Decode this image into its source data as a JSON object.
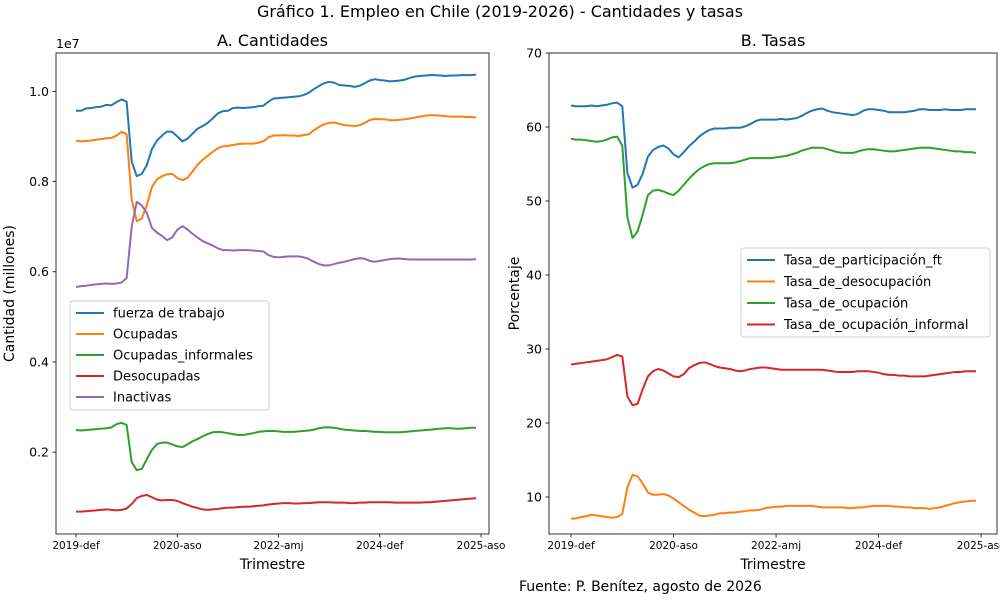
{
  "figure": {
    "title": "Gráfico 1. Empleo en Chile (2019-2026) - Cantidades y tasas",
    "source": "Fuente: P. Benítez, agosto de 2026"
  },
  "chart_data": [
    {
      "type": "line",
      "title": "A. Cantidades",
      "xlabel": "Trimestre",
      "ylabel": "Cantidad (millones)",
      "y_offset_label": "1e7",
      "x_ticks": [
        "2019-def",
        "2020-aso",
        "2022-amj",
        "2024-def",
        "2025-aso"
      ],
      "x_tick_index": [
        0,
        20,
        40,
        60,
        80
      ],
      "ylim": [
        0.0185,
        1.085
      ],
      "yticks": [
        "0.2",
        "0.4",
        "0.6",
        "0.8",
        "1.0"
      ],
      "ytick_values": [
        0.2,
        0.4,
        0.6,
        0.8,
        1.0
      ],
      "grid": false,
      "legend": "center-left",
      "series": [
        {
          "name": "fuerza de trabajo",
          "color": "#1f77b4",
          "values": [
            0.957,
            0.957,
            0.962,
            0.963,
            0.965,
            0.966,
            0.97,
            0.969,
            0.976,
            0.982,
            0.977,
            0.844,
            0.812,
            0.817,
            0.837,
            0.872,
            0.891,
            0.902,
            0.911,
            0.91,
            0.9,
            0.889,
            0.895,
            0.906,
            0.917,
            0.923,
            0.93,
            0.94,
            0.951,
            0.956,
            0.957,
            0.963,
            0.964,
            0.963,
            0.964,
            0.965,
            0.967,
            0.968,
            0.977,
            0.984,
            0.985,
            0.986,
            0.987,
            0.988,
            0.989,
            0.992,
            0.997,
            1.005,
            1.012,
            1.018,
            1.021,
            1.019,
            1.014,
            1.013,
            1.012,
            1.01,
            1.012,
            1.018,
            1.024,
            1.027,
            1.025,
            1.024,
            1.022,
            1.023,
            1.024,
            1.026,
            1.03,
            1.033,
            1.034,
            1.035,
            1.036,
            1.036,
            1.035,
            1.034,
            1.035,
            1.035,
            1.036,
            1.036,
            1.036,
            1.037
          ]
        },
        {
          "name": "Ocupadas",
          "color": "#ff7f0e",
          "values": [
            0.891,
            0.889,
            0.89,
            0.891,
            0.893,
            0.894,
            0.896,
            0.897,
            0.902,
            0.91,
            0.905,
            0.76,
            0.712,
            0.718,
            0.748,
            0.788,
            0.805,
            0.812,
            0.816,
            0.817,
            0.808,
            0.803,
            0.808,
            0.822,
            0.837,
            0.848,
            0.857,
            0.866,
            0.874,
            0.878,
            0.879,
            0.881,
            0.883,
            0.884,
            0.884,
            0.884,
            0.886,
            0.889,
            0.898,
            0.902,
            0.902,
            0.903,
            0.902,
            0.902,
            0.901,
            0.903,
            0.905,
            0.914,
            0.921,
            0.927,
            0.93,
            0.931,
            0.928,
            0.925,
            0.924,
            0.923,
            0.925,
            0.93,
            0.936,
            0.939,
            0.938,
            0.938,
            0.936,
            0.936,
            0.937,
            0.938,
            0.94,
            0.942,
            0.944,
            0.946,
            0.947,
            0.947,
            0.946,
            0.945,
            0.944,
            0.944,
            0.944,
            0.943,
            0.943,
            0.942
          ]
        },
        {
          "name": "Ocupadas_informales",
          "color": "#2ca02c",
          "values": [
            0.249,
            0.248,
            0.249,
            0.25,
            0.251,
            0.252,
            0.253,
            0.255,
            0.262,
            0.265,
            0.26,
            0.178,
            0.16,
            0.163,
            0.185,
            0.205,
            0.218,
            0.221,
            0.221,
            0.217,
            0.213,
            0.211,
            0.217,
            0.224,
            0.229,
            0.235,
            0.24,
            0.244,
            0.245,
            0.244,
            0.242,
            0.24,
            0.238,
            0.238,
            0.24,
            0.242,
            0.245,
            0.246,
            0.247,
            0.247,
            0.246,
            0.245,
            0.245,
            0.245,
            0.246,
            0.247,
            0.248,
            0.25,
            0.253,
            0.255,
            0.255,
            0.254,
            0.252,
            0.25,
            0.249,
            0.248,
            0.247,
            0.247,
            0.246,
            0.245,
            0.245,
            0.244,
            0.244,
            0.244,
            0.244,
            0.245,
            0.246,
            0.247,
            0.248,
            0.249,
            0.25,
            0.251,
            0.252,
            0.253,
            0.253,
            0.252,
            0.252,
            0.253,
            0.254,
            0.254
          ]
        },
        {
          "name": "Desocupadas",
          "color": "#d62728",
          "values": [
            0.068,
            0.068,
            0.069,
            0.07,
            0.071,
            0.072,
            0.073,
            0.072,
            0.071,
            0.072,
            0.075,
            0.085,
            0.098,
            0.103,
            0.105,
            0.1,
            0.095,
            0.093,
            0.094,
            0.094,
            0.092,
            0.087,
            0.083,
            0.079,
            0.076,
            0.073,
            0.072,
            0.073,
            0.074,
            0.076,
            0.077,
            0.077,
            0.078,
            0.079,
            0.079,
            0.08,
            0.081,
            0.082,
            0.084,
            0.085,
            0.086,
            0.087,
            0.087,
            0.086,
            0.086,
            0.087,
            0.087,
            0.088,
            0.089,
            0.089,
            0.089,
            0.088,
            0.088,
            0.088,
            0.087,
            0.087,
            0.088,
            0.088,
            0.089,
            0.089,
            0.089,
            0.089,
            0.089,
            0.088,
            0.088,
            0.088,
            0.088,
            0.088,
            0.088,
            0.089,
            0.089,
            0.09,
            0.091,
            0.092,
            0.093,
            0.094,
            0.095,
            0.096,
            0.097,
            0.098
          ]
        },
        {
          "name": "Inactivas",
          "color": "#9467bd",
          "values": [
            0.566,
            0.568,
            0.569,
            0.571,
            0.572,
            0.573,
            0.574,
            0.573,
            0.574,
            0.576,
            0.586,
            0.7,
            0.755,
            0.747,
            0.73,
            0.697,
            0.687,
            0.679,
            0.67,
            0.676,
            0.693,
            0.701,
            0.694,
            0.684,
            0.676,
            0.668,
            0.663,
            0.658,
            0.652,
            0.648,
            0.648,
            0.647,
            0.648,
            0.648,
            0.648,
            0.647,
            0.646,
            0.645,
            0.637,
            0.633,
            0.632,
            0.633,
            0.634,
            0.634,
            0.634,
            0.632,
            0.628,
            0.622,
            0.617,
            0.614,
            0.614,
            0.617,
            0.62,
            0.622,
            0.625,
            0.628,
            0.63,
            0.629,
            0.624,
            0.622,
            0.624,
            0.626,
            0.628,
            0.629,
            0.629,
            0.628,
            0.627,
            0.627,
            0.627,
            0.627,
            0.627,
            0.627,
            0.627,
            0.627,
            0.627,
            0.627,
            0.627,
            0.627,
            0.627,
            0.628
          ]
        }
      ]
    },
    {
      "type": "line",
      "title": "B. Tasas",
      "xlabel": "Trimestre",
      "ylabel": "Porcentaje",
      "x_ticks": [
        "2019-def",
        "2020-aso",
        "2022-amj",
        "2024-def",
        "2025-aso"
      ],
      "x_tick_index": [
        0,
        20,
        40,
        60,
        80
      ],
      "ylim": [
        5.0,
        70.0
      ],
      "yticks": [
        "10",
        "20",
        "30",
        "40",
        "50",
        "60",
        "70"
      ],
      "ytick_values": [
        10,
        20,
        30,
        40,
        50,
        60,
        70
      ],
      "grid": false,
      "legend": "center-right",
      "series": [
        {
          "name": "Tasa_de_participación_ft",
          "color": "#1f77b4",
          "values": [
            62.9,
            62.8,
            62.8,
            62.8,
            62.9,
            62.8,
            62.9,
            63.0,
            63.2,
            63.3,
            62.8,
            53.8,
            51.8,
            52.2,
            53.7,
            56.0,
            56.9,
            57.3,
            57.5,
            57.1,
            56.3,
            55.9,
            56.6,
            57.4,
            58.0,
            58.7,
            59.2,
            59.6,
            59.8,
            59.8,
            59.8,
            59.9,
            59.9,
            59.9,
            60.1,
            60.4,
            60.8,
            61.0,
            61.0,
            61.0,
            61.0,
            61.1,
            61.0,
            61.1,
            61.2,
            61.5,
            61.9,
            62.2,
            62.4,
            62.5,
            62.2,
            62.0,
            61.9,
            61.8,
            61.7,
            61.6,
            61.8,
            62.2,
            62.4,
            62.4,
            62.3,
            62.2,
            62.0,
            62.0,
            62.0,
            62.0,
            62.1,
            62.2,
            62.4,
            62.4,
            62.3,
            62.3,
            62.3,
            62.4,
            62.3,
            62.3,
            62.3,
            62.4,
            62.4,
            62.4
          ]
        },
        {
          "name": "Tasa_de_desocupación",
          "color": "#ff7f0e",
          "values": [
            7.1,
            7.1,
            7.3,
            7.4,
            7.6,
            7.5,
            7.4,
            7.3,
            7.2,
            7.3,
            7.7,
            11.3,
            13.0,
            12.8,
            11.8,
            10.6,
            10.3,
            10.3,
            10.4,
            10.2,
            9.8,
            9.3,
            8.8,
            8.3,
            7.9,
            7.5,
            7.4,
            7.5,
            7.6,
            7.8,
            7.8,
            7.9,
            7.9,
            8.0,
            8.1,
            8.2,
            8.2,
            8.3,
            8.5,
            8.6,
            8.7,
            8.7,
            8.8,
            8.8,
            8.8,
            8.8,
            8.8,
            8.8,
            8.7,
            8.6,
            8.6,
            8.6,
            8.6,
            8.6,
            8.5,
            8.5,
            8.6,
            8.6,
            8.7,
            8.8,
            8.8,
            8.8,
            8.8,
            8.7,
            8.7,
            8.6,
            8.6,
            8.5,
            8.5,
            8.5,
            8.4,
            8.5,
            8.6,
            8.8,
            9.0,
            9.2,
            9.3,
            9.4,
            9.5,
            9.5
          ]
        },
        {
          "name": "Tasa_de_ocupación",
          "color": "#2ca02c",
          "values": [
            58.4,
            58.3,
            58.3,
            58.2,
            58.1,
            58.0,
            58.1,
            58.3,
            58.6,
            58.7,
            57.5,
            47.8,
            45.0,
            45.9,
            48.2,
            50.8,
            51.4,
            51.5,
            51.3,
            51.0,
            50.8,
            51.4,
            52.2,
            53.0,
            53.7,
            54.3,
            54.7,
            55.0,
            55.1,
            55.1,
            55.1,
            55.1,
            55.2,
            55.4,
            55.6,
            55.8,
            55.8,
            55.8,
            55.8,
            55.8,
            55.9,
            56.0,
            56.1,
            56.3,
            56.5,
            56.8,
            57.0,
            57.2,
            57.2,
            57.2,
            57.0,
            56.8,
            56.6,
            56.5,
            56.5,
            56.5,
            56.7,
            56.9,
            57.0,
            57.0,
            56.9,
            56.8,
            56.7,
            56.7,
            56.8,
            56.9,
            57.0,
            57.1,
            57.2,
            57.2,
            57.2,
            57.1,
            57.0,
            56.9,
            56.8,
            56.7,
            56.7,
            56.6,
            56.6,
            56.5
          ]
        },
        {
          "name": "Tasa_de_ocupación_informal",
          "color": "#d62728",
          "values": [
            27.9,
            28.0,
            28.1,
            28.2,
            28.3,
            28.4,
            28.5,
            28.6,
            28.9,
            29.2,
            29.0,
            23.6,
            22.4,
            22.6,
            24.6,
            26.3,
            27.0,
            27.3,
            27.1,
            26.7,
            26.3,
            26.2,
            26.6,
            27.4,
            27.8,
            28.1,
            28.2,
            28.0,
            27.7,
            27.5,
            27.4,
            27.3,
            27.1,
            27.0,
            27.1,
            27.3,
            27.4,
            27.5,
            27.5,
            27.4,
            27.3,
            27.2,
            27.2,
            27.2,
            27.2,
            27.2,
            27.2,
            27.2,
            27.2,
            27.2,
            27.1,
            27.0,
            26.9,
            26.9,
            26.9,
            26.9,
            27.0,
            27.0,
            27.0,
            26.9,
            26.8,
            26.6,
            26.5,
            26.5,
            26.4,
            26.4,
            26.3,
            26.3,
            26.3,
            26.3,
            26.4,
            26.5,
            26.6,
            26.7,
            26.8,
            26.9,
            26.9,
            27.0,
            27.0,
            27.0
          ]
        }
      ]
    }
  ]
}
